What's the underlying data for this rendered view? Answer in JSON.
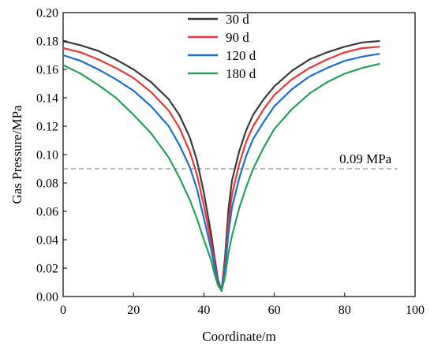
{
  "chart_data": {
    "type": "line",
    "xlabel": "Coordinate/m",
    "ylabel": "Gas Pressure/MPa",
    "xlim": [
      0,
      100
    ],
    "ylim": [
      0,
      0.2
    ],
    "xticks": [
      "0",
      "20",
      "40",
      "60",
      "80",
      "100"
    ],
    "yticks": [
      "0.00",
      "0.02",
      "0.04",
      "0.06",
      "0.08",
      "0.10",
      "0.12",
      "0.14",
      "0.16",
      "0.18",
      "0.20"
    ],
    "grid": false,
    "legend_position": "top-center",
    "x": [
      0,
      5,
      10,
      15,
      20,
      25,
      30,
      33,
      36,
      38,
      40,
      42,
      43,
      44,
      45,
      46,
      47,
      48,
      50,
      52,
      54,
      57,
      60,
      65,
      70,
      75,
      80,
      85,
      90
    ],
    "series": [
      {
        "name": "30 d",
        "color": "#3a3a3a",
        "values": [
          0.18,
          0.177,
          0.173,
          0.167,
          0.16,
          0.151,
          0.139,
          0.128,
          0.112,
          0.096,
          0.073,
          0.045,
          0.028,
          0.012,
          0.004,
          0.028,
          0.062,
          0.082,
          0.102,
          0.117,
          0.128,
          0.139,
          0.148,
          0.159,
          0.167,
          0.172,
          0.176,
          0.179,
          0.18
        ]
      },
      {
        "name": "90 d",
        "color": "#e8373a",
        "values": [
          0.175,
          0.172,
          0.167,
          0.161,
          0.154,
          0.144,
          0.131,
          0.119,
          0.102,
          0.086,
          0.064,
          0.039,
          0.024,
          0.01,
          0.004,
          0.024,
          0.053,
          0.072,
          0.093,
          0.109,
          0.12,
          0.132,
          0.142,
          0.153,
          0.161,
          0.167,
          0.172,
          0.175,
          0.176
        ]
      },
      {
        "name": "120 d",
        "color": "#1f6fc6",
        "values": [
          0.17,
          0.166,
          0.16,
          0.153,
          0.145,
          0.134,
          0.12,
          0.107,
          0.091,
          0.076,
          0.055,
          0.034,
          0.021,
          0.009,
          0.004,
          0.02,
          0.045,
          0.063,
          0.083,
          0.099,
          0.111,
          0.123,
          0.134,
          0.146,
          0.155,
          0.161,
          0.166,
          0.169,
          0.171
        ]
      },
      {
        "name": "180 d",
        "color": "#2a9d5c",
        "values": [
          0.163,
          0.157,
          0.149,
          0.14,
          0.128,
          0.115,
          0.098,
          0.084,
          0.068,
          0.055,
          0.04,
          0.026,
          0.016,
          0.008,
          0.004,
          0.014,
          0.031,
          0.043,
          0.062,
          0.077,
          0.09,
          0.105,
          0.118,
          0.132,
          0.143,
          0.151,
          0.157,
          0.161,
          0.164
        ]
      }
    ],
    "reference_line": {
      "y": 0.09,
      "label": "0.09 MPa",
      "x_range": [
        0,
        95
      ]
    }
  }
}
